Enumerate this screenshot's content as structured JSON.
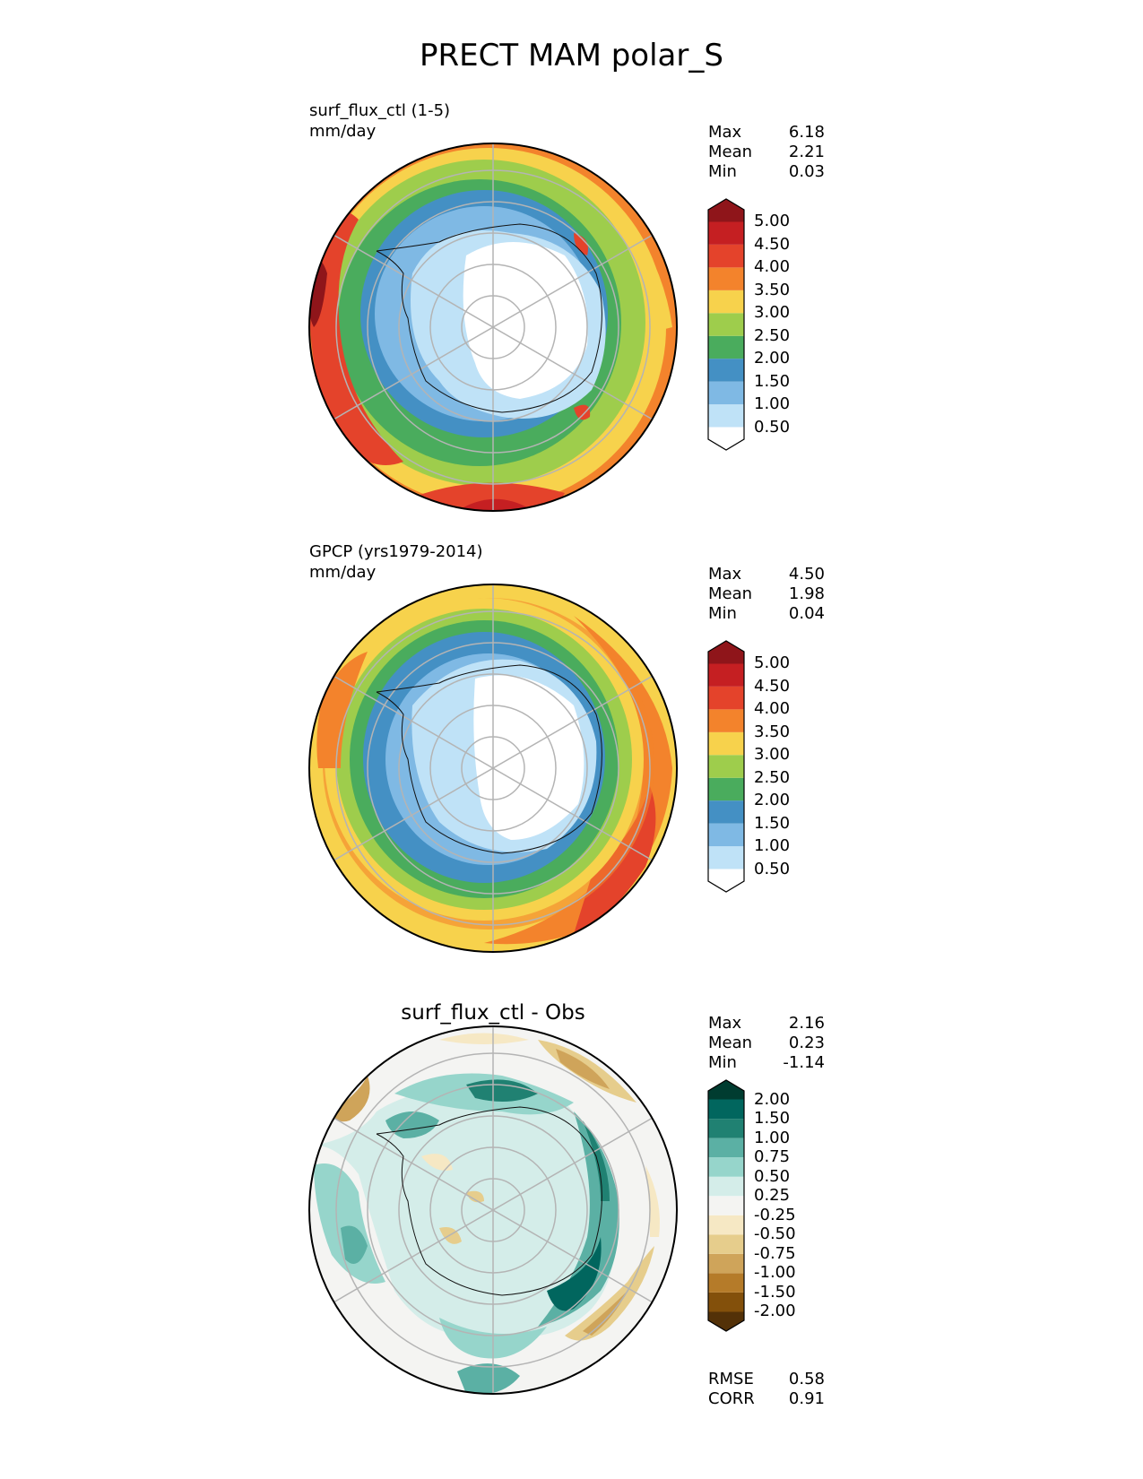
{
  "title": "PRECT MAM polar_S",
  "panels": [
    {
      "label_line1": "surf_flux_ctl (1-5)",
      "label_line2": "mm/day",
      "stats": [
        {
          "name": "Max",
          "value": "6.18"
        },
        {
          "name": "Mean",
          "value": "2.21"
        },
        {
          "name": "Min",
          "value": "0.03"
        }
      ],
      "colorbar": {
        "colors": [
          "#ffffff",
          "#bfe2f7",
          "#7fb9e4",
          "#4490c4",
          "#4aac5d",
          "#9ecd4c",
          "#f7d24c",
          "#f3832c",
          "#e4432b",
          "#c51f22",
          "#8f151a"
        ],
        "labels": [
          "0.50",
          "1.00",
          "1.50",
          "2.00",
          "2.50",
          "3.00",
          "3.50",
          "4.00",
          "4.50",
          "5.00"
        ]
      }
    },
    {
      "label_line1": "GPCP (yrs1979-2014)",
      "label_line2": "mm/day",
      "stats": [
        {
          "name": "Max",
          "value": "4.50"
        },
        {
          "name": "Mean",
          "value": "1.98"
        },
        {
          "name": "Min",
          "value": "0.04"
        }
      ],
      "colorbar": {
        "colors": [
          "#ffffff",
          "#bfe2f7",
          "#7fb9e4",
          "#4490c4",
          "#4aac5d",
          "#9ecd4c",
          "#f7d24c",
          "#f3832c",
          "#e4432b",
          "#c51f22",
          "#8f151a"
        ],
        "labels": [
          "0.50",
          "1.00",
          "1.50",
          "2.00",
          "2.50",
          "3.00",
          "3.50",
          "4.00",
          "4.50",
          "5.00"
        ]
      }
    },
    {
      "title": "surf_flux_ctl - Obs",
      "stats": [
        {
          "name": "Max",
          "value": "2.16"
        },
        {
          "name": "Mean",
          "value": "0.23"
        },
        {
          "name": "Min",
          "value": "-1.14"
        }
      ],
      "metrics": [
        {
          "name": "RMSE",
          "value": "0.58"
        },
        {
          "name": "CORR",
          "value": "0.91"
        }
      ],
      "colorbar": {
        "colors": [
          "#533108",
          "#83500b",
          "#b57b29",
          "#cfa45a",
          "#e6cd8c",
          "#f6e8c4",
          "#f4f4f2",
          "#d4ede9",
          "#96d5cb",
          "#5bb0a4",
          "#208172",
          "#01665e",
          "#003c30"
        ],
        "labels": [
          "-2.00",
          "-1.50",
          "-1.00",
          "-0.75",
          "-0.50",
          "-0.25",
          "0.25",
          "0.50",
          "0.75",
          "1.00",
          "1.50",
          "2.00"
        ]
      }
    }
  ]
}
